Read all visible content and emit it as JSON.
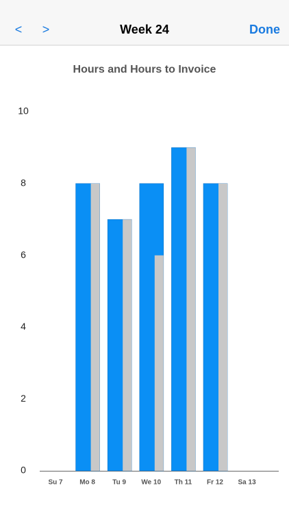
{
  "nav": {
    "back": "<",
    "forward": ">",
    "title": "Week 24",
    "done": "Done"
  },
  "chart_data": {
    "type": "bar",
    "title": "Hours and Hours to Invoice",
    "categories": [
      "Su 7",
      "Mo 8",
      "Tu 9",
      "We 10",
      "Th 11",
      "Fr 12",
      "Sa 13"
    ],
    "series": [
      {
        "color": "#0a8ff5",
        "values": [
          0,
          8,
          7,
          8,
          9,
          8,
          0
        ]
      },
      {
        "color": "#c8c8c8",
        "values": [
          0,
          8,
          7,
          6,
          9,
          8,
          0
        ]
      }
    ],
    "ylim": [
      0,
      10
    ],
    "yticks": [
      0,
      2,
      4,
      6,
      8,
      10
    ],
    "grid": false
  }
}
